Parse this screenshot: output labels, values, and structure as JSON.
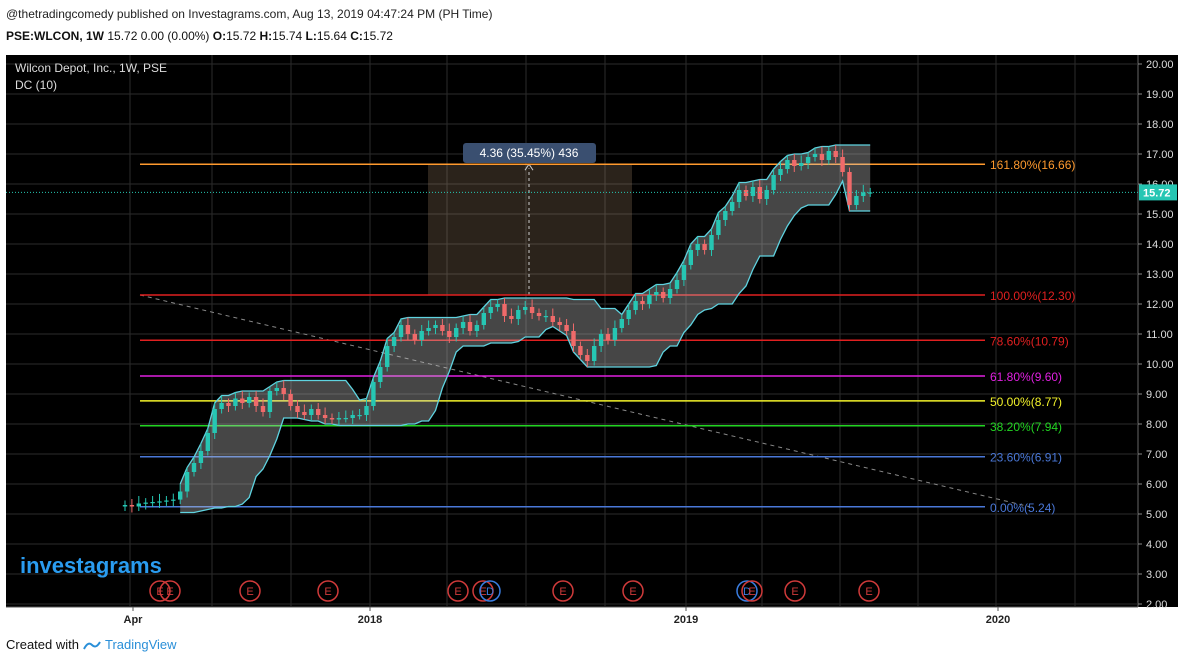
{
  "header": {
    "publish_line": "@thetradingcomedy published on Investagrams.com, Aug 13, 2019 04:47:24 PM (PH Time)",
    "symbol": "PSE:WLCON, 1W",
    "quote": "15.72 0.00 (0.00%)",
    "o_label": "O:",
    "o_value": "15.72",
    "h_label": "H:",
    "h_value": "15.74",
    "l_label": "L:",
    "l_value": "15.64",
    "c_label": "C:",
    "c_value": "15.72"
  },
  "footer": {
    "created_with": "Created with",
    "brand": "TradingView"
  },
  "watermark": "investagrams",
  "colors": {
    "background": "#000000",
    "grid": "#2b2b2b",
    "bull": "#26c6b3",
    "bear": "#ef6a6a",
    "channel": "#5fd3e0"
  },
  "chart_data": {
    "type": "candlestick",
    "title": "Wilcon Depot, Inc., 1W, PSE",
    "indicator": "DC (10)",
    "ylim": [
      1.9,
      20.3
    ],
    "y_ticks": [
      "2.00",
      "3.00",
      "4.00",
      "5.00",
      "6.00",
      "7.00",
      "8.00",
      "9.00",
      "10.00",
      "11.00",
      "12.00",
      "13.00",
      "14.00",
      "15.00",
      "16.00",
      "17.00",
      "18.00",
      "19.00",
      "20.00"
    ],
    "x_ticks": [
      {
        "t": 0.36,
        "label": "Apr"
      },
      {
        "t": 1.1,
        "label": "2018"
      },
      {
        "t": 2.1,
        "label": "2019"
      },
      {
        "t": 3.1,
        "label": "2020"
      }
    ],
    "last_price": "15.72",
    "fib_levels": [
      {
        "label": "161.80%(16.66)",
        "value": 16.66,
        "color": "#ff9a2e"
      },
      {
        "label": "100.00%(12.30)",
        "value": 12.3,
        "color": "#e02020"
      },
      {
        "label": "78.60%(10.79)",
        "value": 10.79,
        "color": "#e02020"
      },
      {
        "label": "61.80%(9.60)",
        "value": 9.6,
        "color": "#e020e0"
      },
      {
        "label": "50.00%(8.77)",
        "value": 8.77,
        "color": "#f2f22a"
      },
      {
        "label": "38.20%(7.94)",
        "value": 7.94,
        "color": "#22d422"
      },
      {
        "label": "23.60%(6.91)",
        "value": 6.91,
        "color": "#4a78d8"
      },
      {
        "label": "0.00%(5.24)",
        "value": 5.24,
        "color": "#4a78d8"
      }
    ],
    "measure_label": "4.36 (35.45%) 436",
    "earnings_markers": [
      "E",
      "E",
      "E",
      "E",
      "E",
      "D",
      "E",
      "E",
      "D",
      "E",
      "E"
    ],
    "closes": [
      5.3,
      5.25,
      5.35,
      5.38,
      5.4,
      5.42,
      5.45,
      5.48,
      5.75,
      6.4,
      6.7,
      7.1,
      7.7,
      8.5,
      8.7,
      8.6,
      8.85,
      8.7,
      8.9,
      8.6,
      8.4,
      9.1,
      9.2,
      9.0,
      8.6,
      8.4,
      8.3,
      8.5,
      8.3,
      8.2,
      8.15,
      8.2,
      8.2,
      8.3,
      8.3,
      8.6,
      9.4,
      9.9,
      10.6,
      10.9,
      11.3,
      11.0,
      10.8,
      11.1,
      11.2,
      11.3,
      11.1,
      10.9,
      11.2,
      11.4,
      11.1,
      11.3,
      11.7,
      11.9,
      12.0,
      11.6,
      11.5,
      11.8,
      11.9,
      11.7,
      11.6,
      11.6,
      11.4,
      11.3,
      11.1,
      10.6,
      10.3,
      10.1,
      10.6,
      11.0,
      10.8,
      11.2,
      11.5,
      11.8,
      12.1,
      12.0,
      12.3,
      12.4,
      12.2,
      12.5,
      12.8,
      13.3,
      13.8,
      14.0,
      13.8,
      14.3,
      14.8,
      15.1,
      15.4,
      15.8,
      15.6,
      15.9,
      15.5,
      15.8,
      16.3,
      16.5,
      16.8,
      16.6,
      16.7,
      16.9,
      17.0,
      16.8,
      17.1,
      16.9,
      16.4,
      15.3,
      15.6,
      15.72,
      15.72
    ]
  }
}
